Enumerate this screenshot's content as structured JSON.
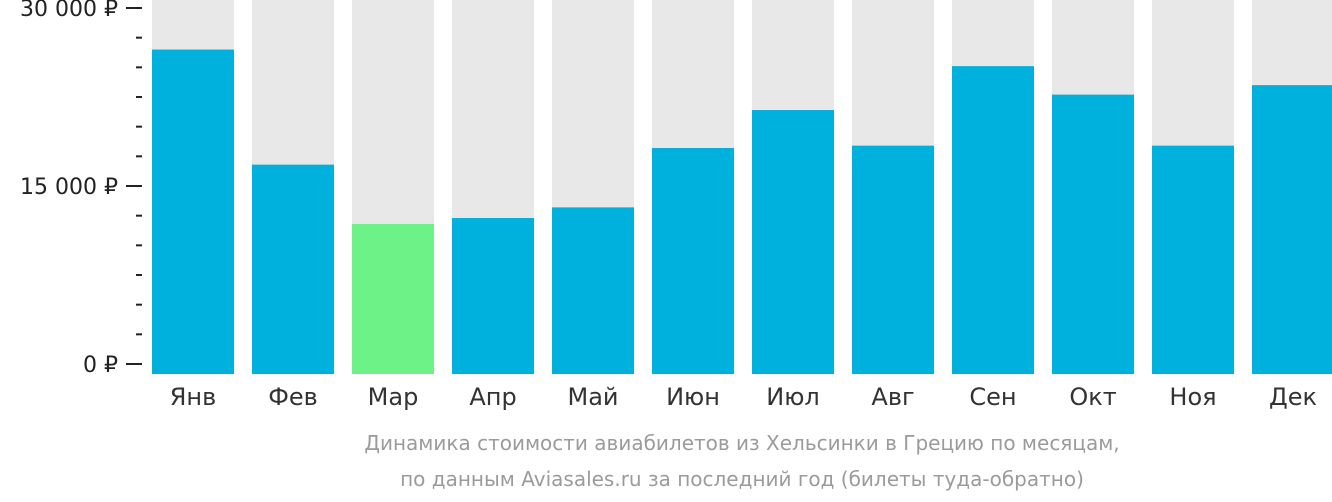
{
  "chart_data": {
    "type": "bar",
    "categories": [
      "Янв",
      "Фев",
      "Мар",
      "Апр",
      "Май",
      "Июн",
      "Июл",
      "Авг",
      "Сен",
      "Окт",
      "Ноя",
      "Дек"
    ],
    "values": [
      26500,
      16800,
      11800,
      12300,
      13200,
      18200,
      21400,
      18400,
      25100,
      22700,
      18400,
      23500
    ],
    "ylim": [
      0,
      30000
    ],
    "yticks": [
      {
        "value": 0,
        "label": "0 ₽"
      },
      {
        "value": 15000,
        "label": "15 000 ₽"
      },
      {
        "value": 30000,
        "label": "30 000 ₽"
      }
    ],
    "highlight_index": 2,
    "colors": {
      "bar": "#00b0dd",
      "highlight": "#6cf287",
      "background_bar": "#e8e8e8",
      "axis": "#222222"
    },
    "grid": false,
    "legend": "none"
  },
  "caption": {
    "line1": "Динамика стоимости авиабилетов из Хельсинки в Грецию по месяцам,",
    "line2": "по данным Aviasales.ru за последний год (билеты туда-обратно)"
  }
}
